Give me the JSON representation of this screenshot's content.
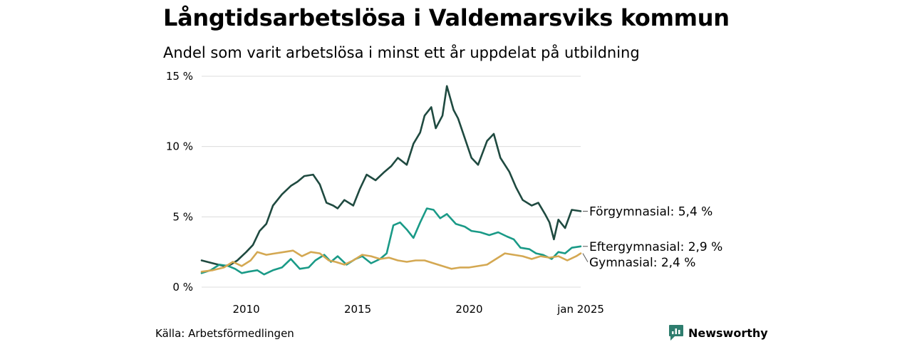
{
  "title": "Långtidsarbetslösa i Valdemarsviks kommun",
  "subtitle": "Andel som varit arbetslösa i minst ett år uppdelat på utbildning",
  "source": "Källa: Arbetsförmedlingen",
  "logo": {
    "text": "Newsworthy",
    "color": "#2e7d6e"
  },
  "chart_data": {
    "type": "line",
    "title": "Långtidsarbetslösa i Valdemarsviks kommun",
    "subtitle": "Andel som varit arbetslösa i minst ett år uppdelat på utbildning",
    "xlabel": "",
    "ylabel": "",
    "xlim": [
      2008.0,
      2025.0
    ],
    "ylim": [
      0,
      15
    ],
    "x_ticks": [
      {
        "value": 2010,
        "label": "2010"
      },
      {
        "value": 2015,
        "label": "2015"
      },
      {
        "value": 2020,
        "label": "2020"
      },
      {
        "value": 2025,
        "label": "jan 2025"
      }
    ],
    "y_ticks": [
      {
        "value": 0,
        "label": "0 %"
      },
      {
        "value": 5,
        "label": "5 %"
      },
      {
        "value": 10,
        "label": "10 %"
      },
      {
        "value": 15,
        "label": "15 %"
      }
    ],
    "grid": true,
    "series": [
      {
        "name": "Förgymnasial",
        "end_label": "Förgymnasial: 5,4 %",
        "color": "#1f4a40",
        "x": [
          2008.0,
          2008.5,
          2009.0,
          2009.3,
          2009.6,
          2010.0,
          2010.3,
          2010.6,
          2010.9,
          2011.2,
          2011.6,
          2012.0,
          2012.3,
          2012.6,
          2013.0,
          2013.3,
          2013.6,
          2013.9,
          2014.1,
          2014.4,
          2014.8,
          2015.1,
          2015.4,
          2015.8,
          2016.2,
          2016.5,
          2016.8,
          2017.2,
          2017.5,
          2017.8,
          2018.0,
          2018.3,
          2018.5,
          2018.8,
          2019.0,
          2019.3,
          2019.5,
          2019.8,
          2020.1,
          2020.4,
          2020.8,
          2021.1,
          2021.4,
          2021.8,
          2022.1,
          2022.4,
          2022.8,
          2023.1,
          2023.4,
          2023.6,
          2023.8,
          2024.0,
          2024.3,
          2024.6,
          2025.0
        ],
        "values": [
          1.9,
          1.7,
          1.5,
          1.6,
          1.9,
          2.5,
          3.0,
          4.0,
          4.5,
          5.8,
          6.6,
          7.2,
          7.5,
          7.9,
          8.0,
          7.3,
          6.0,
          5.8,
          5.6,
          6.2,
          5.8,
          7.0,
          8.0,
          7.6,
          8.2,
          8.6,
          9.2,
          8.7,
          10.2,
          11.0,
          12.2,
          12.8,
          11.3,
          12.2,
          14.3,
          12.6,
          12.0,
          10.6,
          9.2,
          8.7,
          10.4,
          10.9,
          9.2,
          8.2,
          7.1,
          6.2,
          5.8,
          6.0,
          5.2,
          4.6,
          3.4,
          4.8,
          4.2,
          5.5,
          5.4
        ]
      },
      {
        "name": "Eftergymnasial",
        "end_label": "Eftergymnasial: 2,9 %",
        "color": "#1a9a87",
        "x": [
          2008.0,
          2008.4,
          2008.8,
          2009.2,
          2009.5,
          2009.8,
          2010.1,
          2010.5,
          2010.8,
          2011.2,
          2011.6,
          2012.0,
          2012.4,
          2012.8,
          2013.1,
          2013.5,
          2013.8,
          2014.1,
          2014.5,
          2014.9,
          2015.2,
          2015.6,
          2016.0,
          2016.3,
          2016.6,
          2016.9,
          2017.2,
          2017.5,
          2017.8,
          2018.1,
          2018.4,
          2018.7,
          2019.0,
          2019.4,
          2019.8,
          2020.1,
          2020.5,
          2020.9,
          2021.3,
          2021.7,
          2022.0,
          2022.3,
          2022.7,
          2023.0,
          2023.3,
          2023.7,
          2024.0,
          2024.3,
          2024.6,
          2025.0
        ],
        "values": [
          1.0,
          1.2,
          1.6,
          1.5,
          1.3,
          1.0,
          1.1,
          1.2,
          0.9,
          1.2,
          1.4,
          2.0,
          1.3,
          1.4,
          1.9,
          2.3,
          1.8,
          2.2,
          1.6,
          2.0,
          2.2,
          1.7,
          2.0,
          2.4,
          4.4,
          4.6,
          4.1,
          3.5,
          4.6,
          5.6,
          5.5,
          4.9,
          5.2,
          4.5,
          4.3,
          4.0,
          3.9,
          3.7,
          3.9,
          3.6,
          3.4,
          2.8,
          2.7,
          2.4,
          2.3,
          2.0,
          2.5,
          2.4,
          2.8,
          2.9
        ]
      },
      {
        "name": "Gymnasial",
        "end_label": "Gymnasial: 2,4 %",
        "color": "#d4a852",
        "x": [
          2008.0,
          2008.5,
          2009.0,
          2009.4,
          2009.8,
          2010.2,
          2010.5,
          2010.9,
          2011.3,
          2011.7,
          2012.1,
          2012.5,
          2012.9,
          2013.3,
          2013.7,
          2014.0,
          2014.4,
          2014.8,
          2015.2,
          2015.6,
          2016.0,
          2016.4,
          2016.8,
          2017.2,
          2017.6,
          2018.0,
          2018.4,
          2018.8,
          2019.2,
          2019.6,
          2020.0,
          2020.4,
          2020.8,
          2021.2,
          2021.6,
          2022.0,
          2022.4,
          2022.8,
          2023.2,
          2023.6,
          2024.0,
          2024.4,
          2024.8,
          2025.0
        ],
        "values": [
          1.1,
          1.2,
          1.4,
          1.8,
          1.5,
          1.9,
          2.5,
          2.3,
          2.4,
          2.5,
          2.6,
          2.2,
          2.5,
          2.4,
          1.9,
          1.8,
          1.6,
          1.9,
          2.3,
          2.2,
          2.0,
          2.1,
          1.9,
          1.8,
          1.9,
          1.9,
          1.7,
          1.5,
          1.3,
          1.4,
          1.4,
          1.5,
          1.6,
          2.0,
          2.4,
          2.3,
          2.2,
          2.0,
          2.2,
          2.1,
          2.2,
          1.9,
          2.2,
          2.4
        ]
      }
    ]
  }
}
